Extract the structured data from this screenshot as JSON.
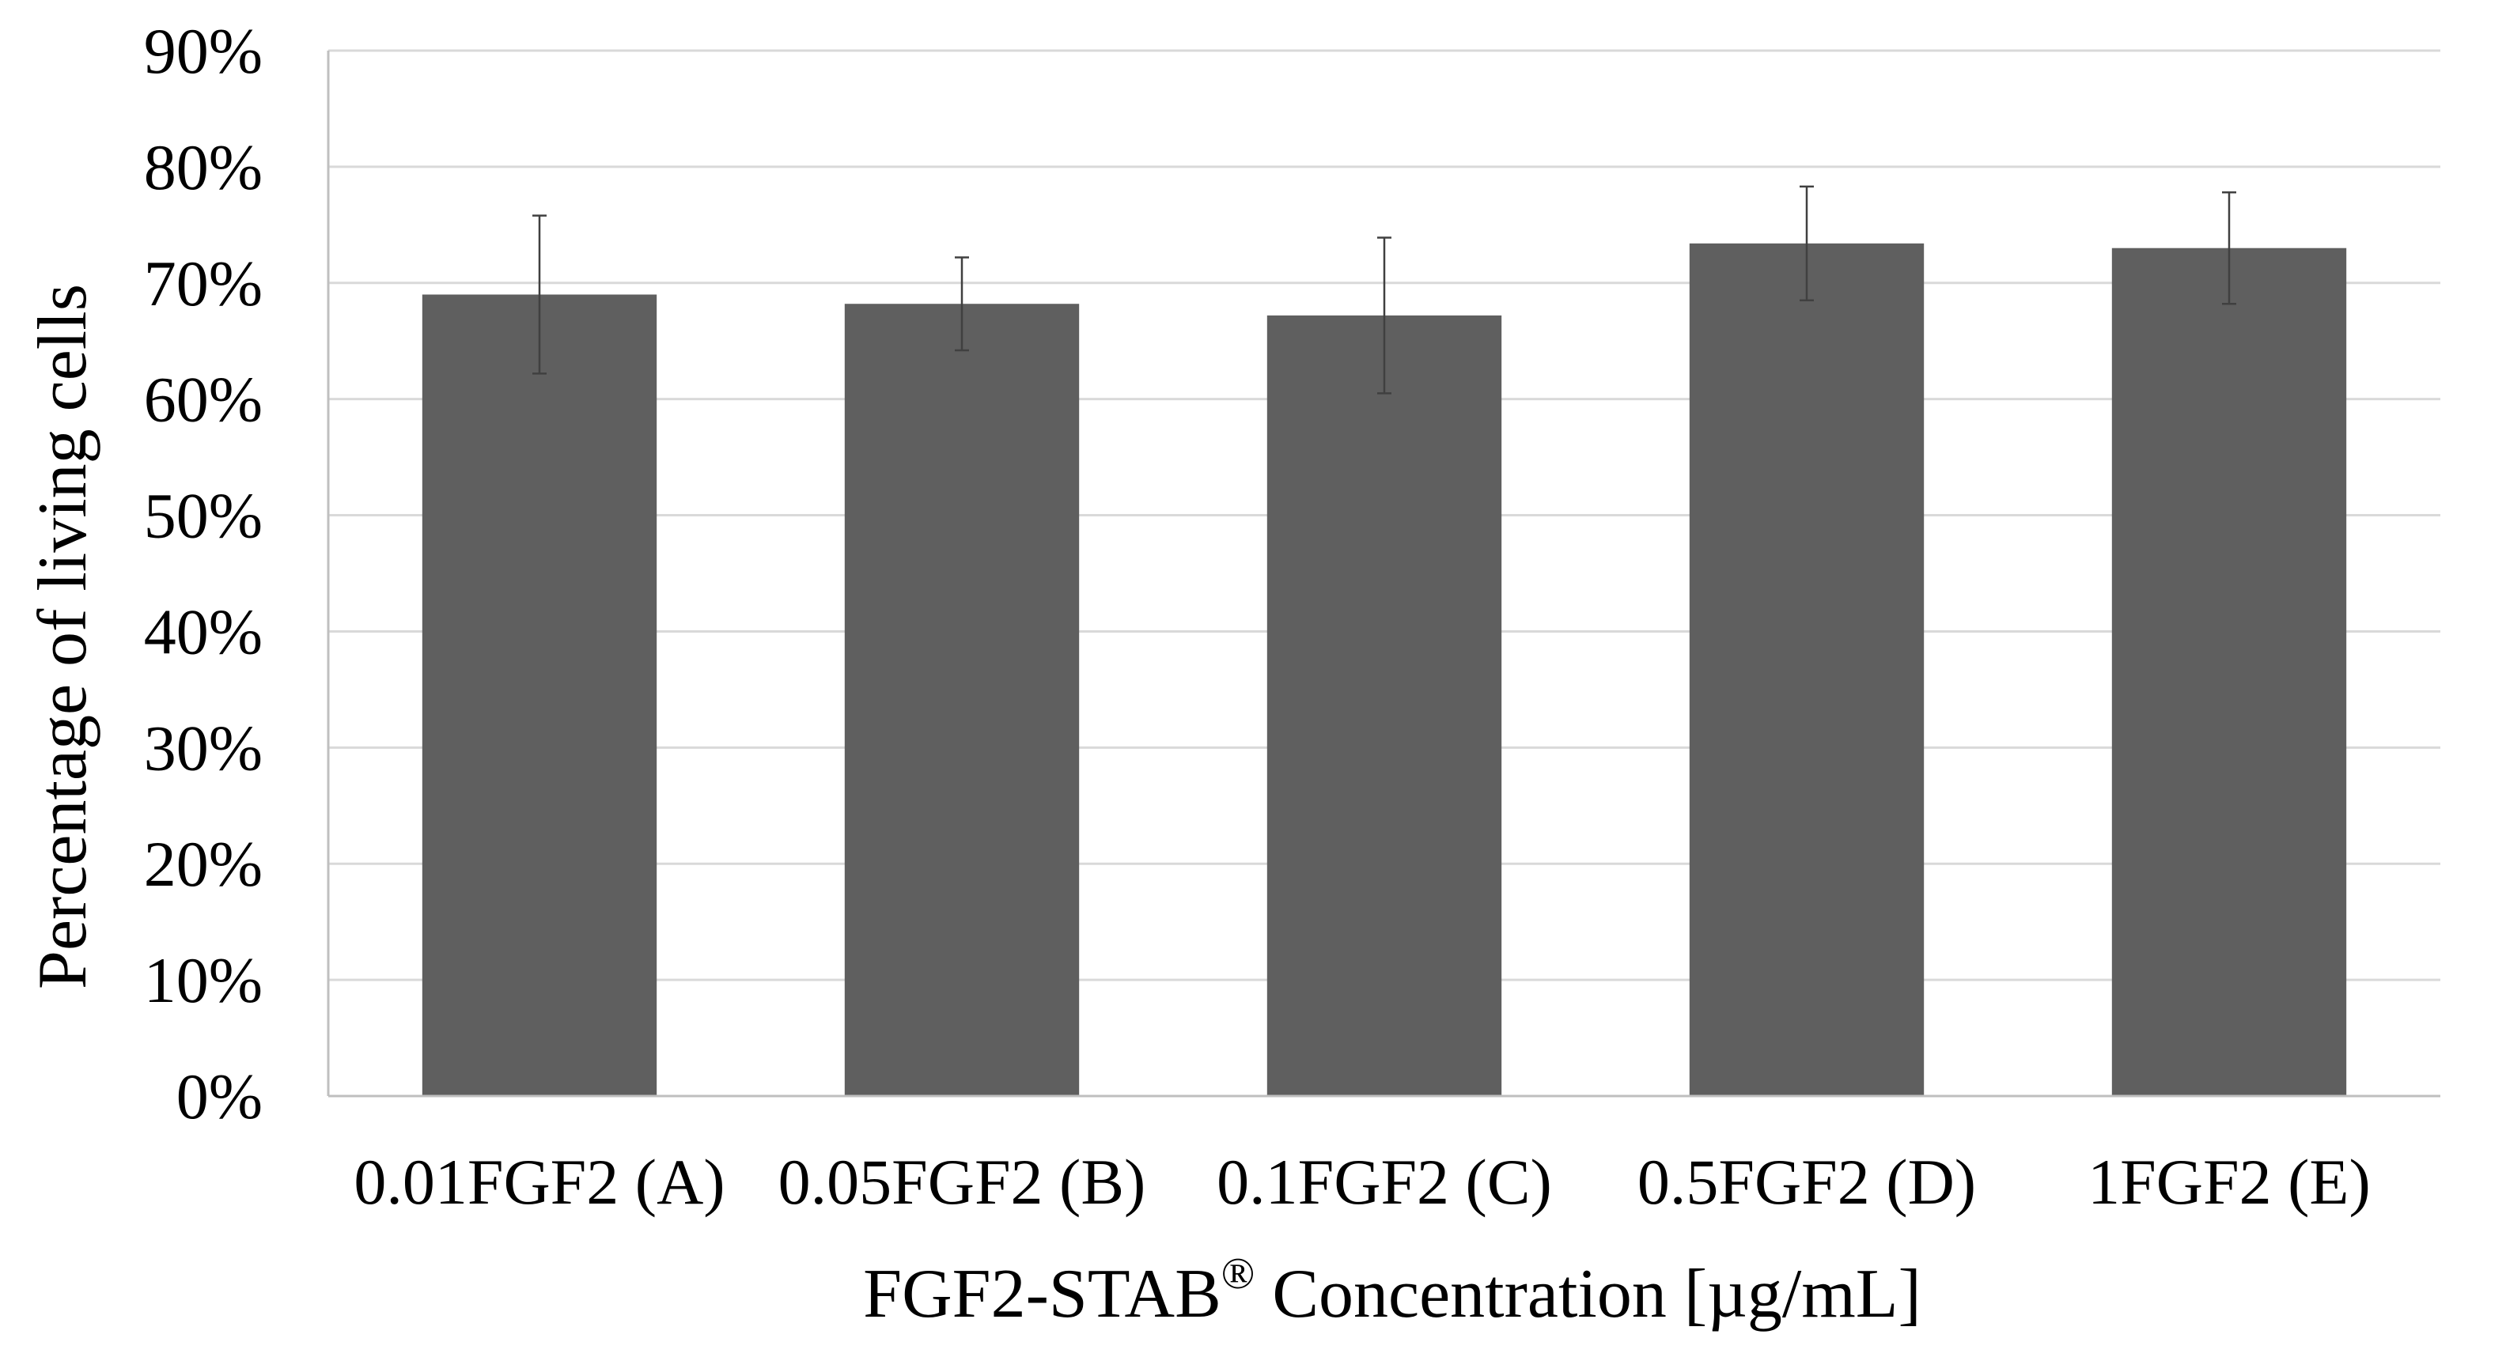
{
  "chart_data": {
    "type": "bar",
    "title": "",
    "xlabel_main": "FGF2-STAB",
    "xlabel_superscript": "®",
    "xlabel_rest": " Concentration [µg/mL]",
    "ylabel": "Percentage of living cells",
    "categories": [
      "0.01FGF2 (A)",
      "0.05FGF2 (B)",
      "0.1FGF2 (C)",
      "0.5FGF2 (D)",
      "1FGF2 (E)"
    ],
    "values": [
      69,
      68.2,
      67.2,
      73.4,
      73
    ],
    "errors": [
      6.8,
      4,
      6.7,
      4.9,
      4.8
    ],
    "ylim": [
      0,
      90
    ],
    "yticks": [
      0,
      10,
      20,
      30,
      40,
      50,
      60,
      70,
      80,
      90
    ],
    "ytick_labels": [
      "0%",
      "10%",
      "20%",
      "30%",
      "40%",
      "50%",
      "60%",
      "70%",
      "80%",
      "90%"
    ],
    "grid": true,
    "legend": "none",
    "colors": {
      "bar": "#5f5f5f",
      "grid": "#d9d9d9",
      "axis": "#bfbfbf",
      "error": "#404040"
    }
  }
}
